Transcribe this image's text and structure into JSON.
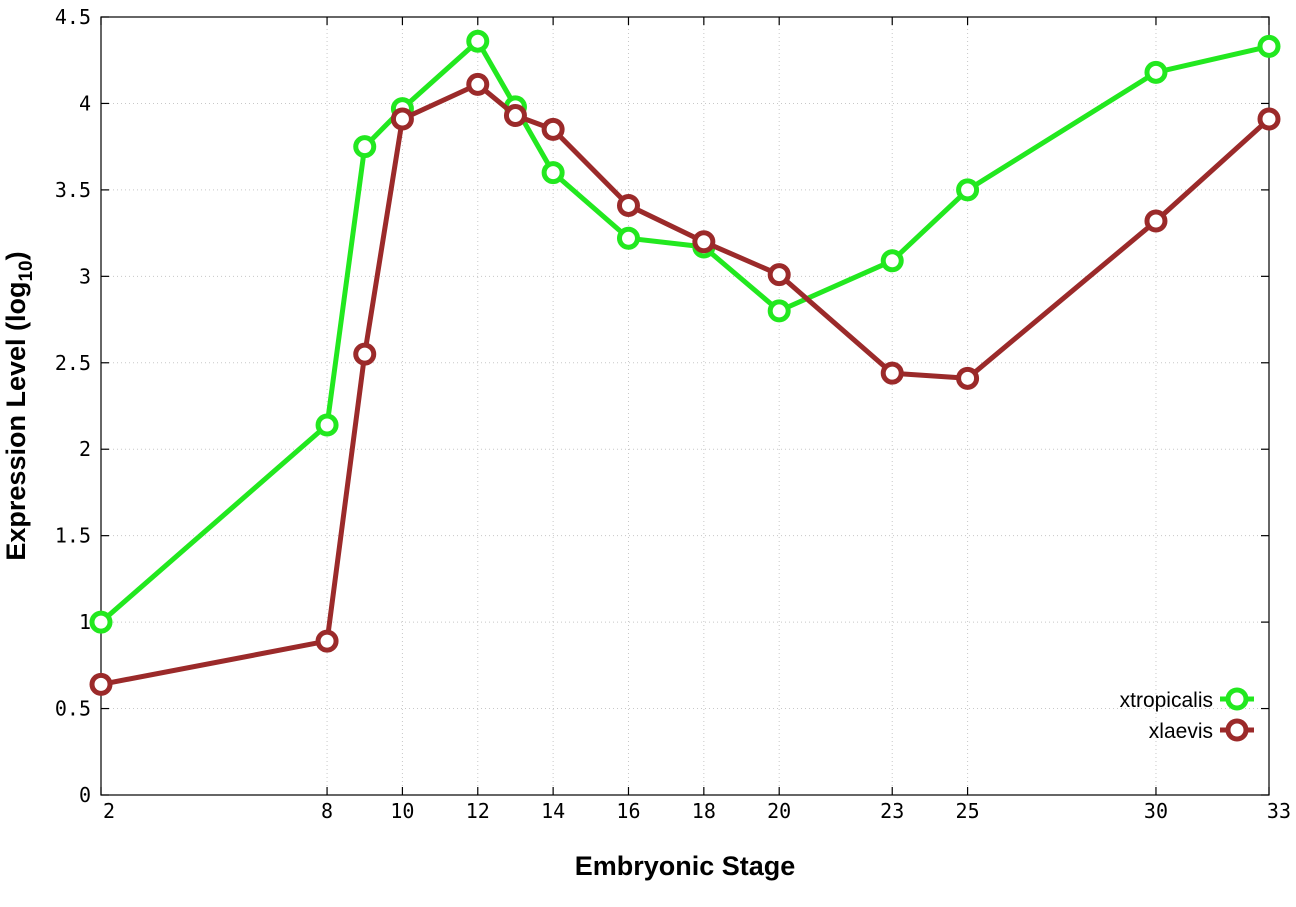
{
  "chart_data": {
    "type": "line",
    "xlabel": "Embryonic Stage",
    "ylabel_main": "Expression Level (log",
    "ylabel_sub": "10",
    "ylabel_end": ")",
    "x_categories": [
      "2",
      "8",
      "9",
      "10",
      "12",
      "13",
      "14",
      "16",
      "18",
      "20",
      "23",
      "25",
      "30",
      "33"
    ],
    "x_tick_labels": [
      "2",
      "8",
      "10",
      "12",
      "14",
      "16",
      "18",
      "20",
      "23",
      "25",
      "30",
      "33"
    ],
    "y_ticks": [
      "0",
      "0.5",
      "1",
      "1.5",
      "2",
      "2.5",
      "3",
      "3.5",
      "4",
      "4.5"
    ],
    "ylim": [
      0,
      4.5
    ],
    "grid": true,
    "legend_position": "bottom-right",
    "series": [
      {
        "name": "xtropicalis",
        "color": "#22e81f",
        "values": [
          1.0,
          2.14,
          3.75,
          3.97,
          4.36,
          3.98,
          3.6,
          3.22,
          3.17,
          2.8,
          3.09,
          3.5,
          4.18,
          4.33
        ]
      },
      {
        "name": "xlaevis",
        "color": "#9b2a2a",
        "values": [
          0.64,
          0.89,
          2.55,
          3.91,
          4.11,
          3.93,
          3.85,
          3.41,
          3.2,
          3.01,
          2.44,
          2.41,
          3.32,
          3.91
        ]
      }
    ]
  }
}
